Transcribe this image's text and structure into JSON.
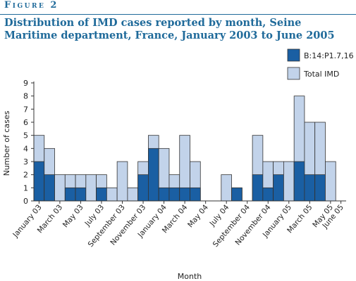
{
  "figure_label": "Figure 2",
  "chart_data": {
    "type": "bar",
    "title": "Distribution of IMD cases reported by month, Seine Maritime department, France, January 2003 to June 2005",
    "xlabel": "Month",
    "ylabel": "Number of cases",
    "ylim": [
      0,
      9
    ],
    "yticks": [
      0,
      1,
      2,
      3,
      4,
      5,
      6,
      7,
      8,
      9
    ],
    "grid": false,
    "legend_position": "top-right",
    "categories": [
      "Jan 03",
      "Feb 03",
      "Mar 03",
      "Apr 03",
      "May 03",
      "Jun 03",
      "Jul 03",
      "Aug 03",
      "Sep 03",
      "Oct 03",
      "Nov 03",
      "Dec 03",
      "Jan 04",
      "Feb 04",
      "Mar 04",
      "Apr 04",
      "May 04",
      "Jun 04",
      "Jul 04",
      "Aug 04",
      "Sep 04",
      "Oct 04",
      "Nov 04",
      "Dec 04",
      "Jan 05",
      "Feb 05",
      "Mar 05",
      "Apr 05",
      "May 05",
      "Jun 05"
    ],
    "tick_labels": [
      "January 03",
      "March 03",
      "May 03",
      "July 03",
      "September 03",
      "November 03",
      "January 04",
      "March 04",
      "May 04",
      "July 04",
      "September 04",
      "November 04",
      "January 05",
      "March 05",
      "May 05",
      "June 05"
    ],
    "series": [
      {
        "name": "B:14:P1.7,16",
        "color": "#1a5fa3",
        "values": [
          3,
          2,
          0,
          1,
          1,
          0,
          1,
          0,
          0,
          0,
          2,
          4,
          1,
          1,
          1,
          1,
          0,
          0,
          0,
          1,
          0,
          2,
          1,
          2,
          0,
          3,
          2,
          2,
          0,
          0
        ]
      },
      {
        "name": "Total IMD",
        "color": "#c2d3ea",
        "values": [
          5,
          4,
          2,
          2,
          2,
          2,
          2,
          1,
          3,
          1,
          3,
          5,
          4,
          2,
          5,
          3,
          0,
          0,
          2,
          1,
          0,
          5,
          3,
          3,
          3,
          8,
          6,
          6,
          3,
          0
        ]
      }
    ]
  }
}
